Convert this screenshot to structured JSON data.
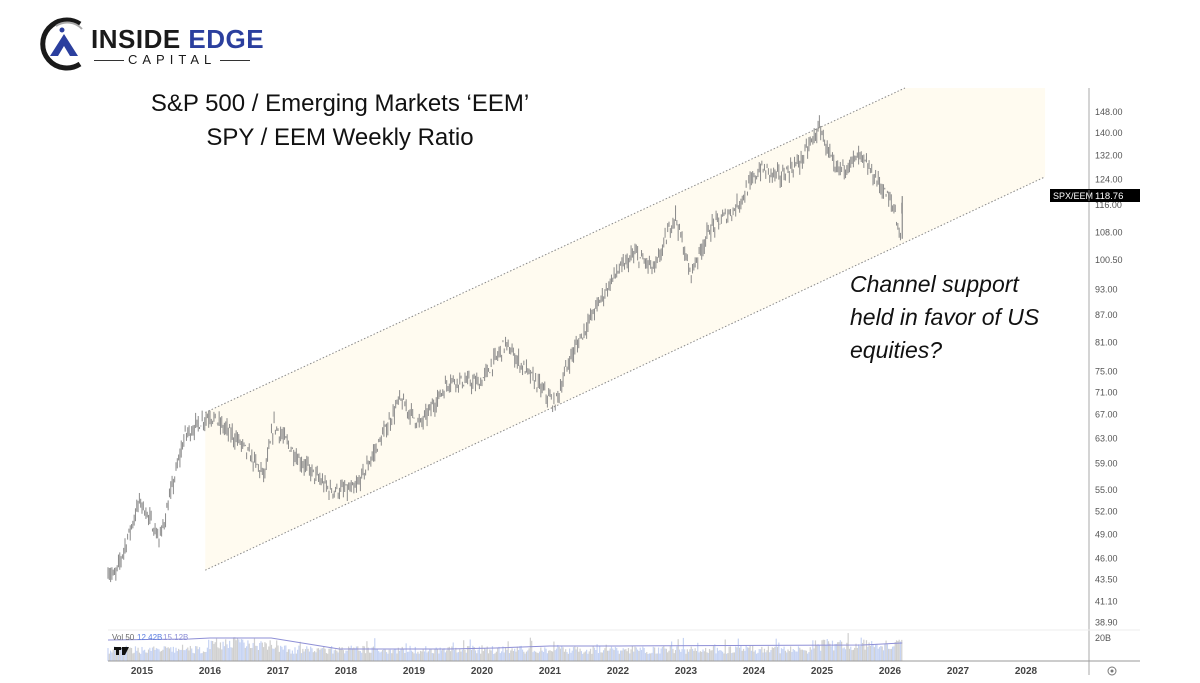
{
  "logo": {
    "main_1": "INSIDE",
    "main_2": "EDGE",
    "sub": "CAPITAL"
  },
  "title": {
    "line1": "S&P 500 / Emerging Markets ‘EEM’",
    "line2": "SPY / EEM Weekly Ratio"
  },
  "annotation": {
    "lines": [
      "Channel support",
      "held in favor of US",
      "equities?"
    ]
  },
  "colors": {
    "price": "#8a8a8a",
    "channel_fill": "#fffbf0",
    "channel_line": "#888888",
    "vol_ma": "#8e8fd6",
    "vol_up": "#c6d3f3",
    "vol_down": "#cfcfcf",
    "tag_bg": "#000000"
  },
  "chart_data": {
    "type": "line",
    "title": "SPY / EEM Weekly Ratio",
    "scale": "log",
    "symbol": "SPX/EEM",
    "last_value": "118.76",
    "ylim": [
      38.9,
      160
    ],
    "y_ticks": [
      "148.00",
      "140.00",
      "132.00",
      "124.00",
      "116.00",
      "108.00",
      "100.50",
      "93.00",
      "87.00",
      "81.00",
      "75.00",
      "71.00",
      "67.00",
      "63.00",
      "59.00",
      "55.00",
      "52.00",
      "49.00",
      "46.00",
      "43.50",
      "41.10",
      "38.90"
    ],
    "x_ticks": [
      "2015",
      "2016",
      "2017",
      "2018",
      "2019",
      "2020",
      "2021",
      "2022",
      "2023",
      "2024",
      "2025",
      "2026",
      "2027",
      "2028"
    ],
    "xlim": [
      2014.5,
      2028.9
    ],
    "series": [
      {
        "name": "SPX/EEM",
        "points": [
          [
            2014.5,
            44.6
          ],
          [
            2014.6,
            43.8
          ],
          [
            2014.97,
            53.6
          ],
          [
            2015.26,
            48.3
          ],
          [
            2015.63,
            63.5
          ],
          [
            2015.99,
            67.0
          ],
          [
            2016.43,
            62.5
          ],
          [
            2016.8,
            57.1
          ],
          [
            2016.94,
            65.3
          ],
          [
            2017.31,
            59.6
          ],
          [
            2017.76,
            55.0
          ],
          [
            2018.13,
            55.0
          ],
          [
            2018.5,
            62.5
          ],
          [
            2018.79,
            69.7
          ],
          [
            2019.09,
            65.3
          ],
          [
            2019.53,
            73.4
          ],
          [
            2019.97,
            72.7
          ],
          [
            2020.34,
            80.6
          ],
          [
            2020.63,
            75.5
          ],
          [
            2021.07,
            68.8
          ],
          [
            2021.29,
            77.5
          ],
          [
            2021.66,
            88.3
          ],
          [
            2021.96,
            96.8
          ],
          [
            2022.25,
            102.0
          ],
          [
            2022.54,
            98.0
          ],
          [
            2022.84,
            113.4
          ],
          [
            2023.06,
            96.8
          ],
          [
            2023.35,
            109.0
          ],
          [
            2023.72,
            114.9
          ],
          [
            2024.09,
            127.6
          ],
          [
            2024.38,
            125.0
          ],
          [
            2024.68,
            130.0
          ],
          [
            2024.97,
            142.3
          ],
          [
            2025.19,
            126.6
          ],
          [
            2025.56,
            131.7
          ],
          [
            2025.85,
            122.5
          ],
          [
            2026.07,
            114.8
          ],
          [
            2026.15,
            106.2
          ],
          [
            2026.18,
            118.76
          ]
        ]
      }
    ],
    "channel": {
      "upper": [
        [
          2015.93,
          67.4
        ],
        [
          2026.22,
          157.6
        ]
      ],
      "lower": [
        [
          2015.93,
          44.6
        ],
        [
          2028.28,
          124.9
        ]
      ]
    },
    "volume": {
      "label": "Vol 50",
      "value1": "12.42B",
      "value2": "15.12B",
      "axis_label": "20B"
    }
  }
}
